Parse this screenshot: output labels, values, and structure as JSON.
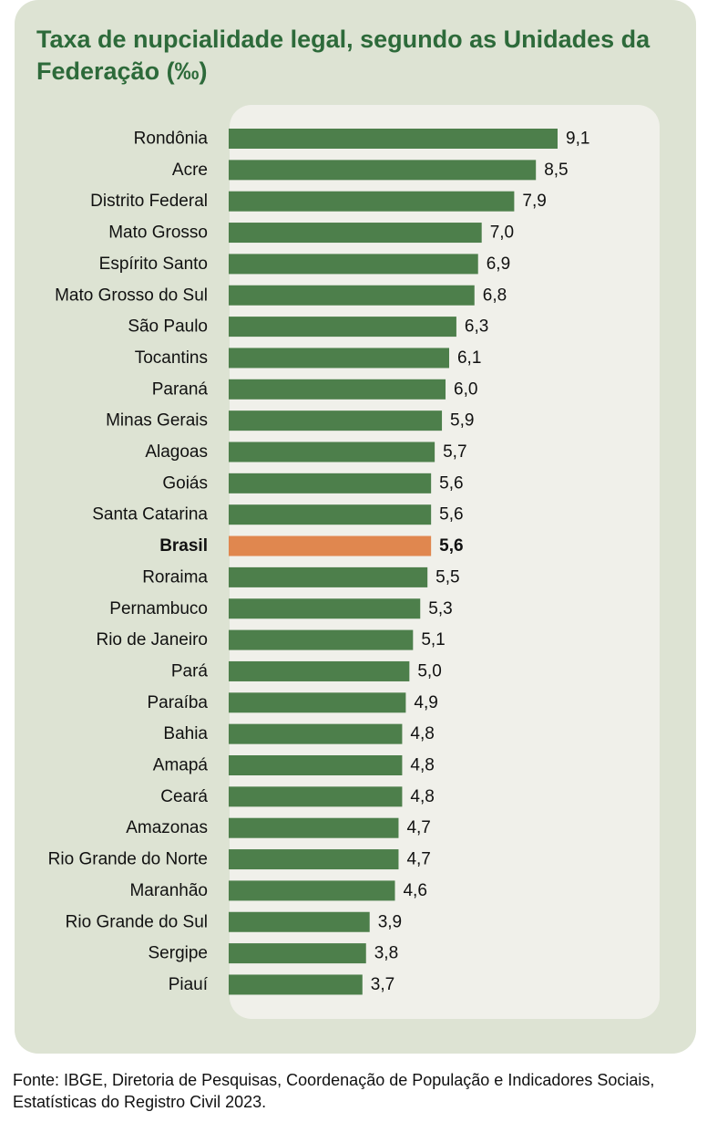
{
  "title": "Taxa de nupcialidade legal, segundo as Unidades da Federação (‰)",
  "source": "Fonte: IBGE, Diretoria de Pesquisas, Coordenação de População e Indicadores Sociais, Estatísticas do Registro Civil 2023.",
  "colors": {
    "bar": "#4d7f4b",
    "highlight": "#e0874f",
    "title": "#2d6a3a",
    "card": "#dde3d3",
    "panel": "#f0f0ea"
  },
  "chart_data": {
    "type": "bar",
    "orientation": "horizontal",
    "categories": [
      "Rondônia",
      "Acre",
      "Distrito Federal",
      "Mato Grosso",
      "Espírito Santo",
      "Mato Grosso do Sul",
      "São Paulo",
      "Tocantins",
      "Paraná",
      "Minas Gerais",
      "Alagoas",
      "Goiás",
      "Santa Catarina",
      "Brasil",
      "Roraima",
      "Pernambuco",
      "Rio de Janeiro",
      "Pará",
      "Paraíba",
      "Bahia",
      "Amapá",
      "Ceará",
      "Amazonas",
      "Rio Grande do Norte",
      "Maranhão",
      "Rio Grande do Sul",
      "Sergipe",
      "Piauí"
    ],
    "values": [
      9.1,
      8.5,
      7.9,
      7.0,
      6.9,
      6.8,
      6.3,
      6.1,
      6.0,
      5.9,
      5.7,
      5.6,
      5.6,
      5.6,
      5.5,
      5.3,
      5.1,
      5.0,
      4.9,
      4.8,
      4.8,
      4.8,
      4.7,
      4.7,
      4.6,
      3.9,
      3.8,
      3.7
    ],
    "value_labels": [
      "9,1",
      "8,5",
      "7,9",
      "7,0",
      "6,9",
      "6,8",
      "6,3",
      "6,1",
      "6,0",
      "5,9",
      "5,7",
      "5,6",
      "5,6",
      "5,6",
      "5,5",
      "5,3",
      "5,1",
      "5,0",
      "4,9",
      "4,8",
      "4,8",
      "4,8",
      "4,7",
      "4,7",
      "4,6",
      "3,9",
      "3,8",
      "3,7"
    ],
    "highlight": "Brasil",
    "xlim": [
      0,
      9.1
    ],
    "grid": false,
    "legend": "none"
  }
}
